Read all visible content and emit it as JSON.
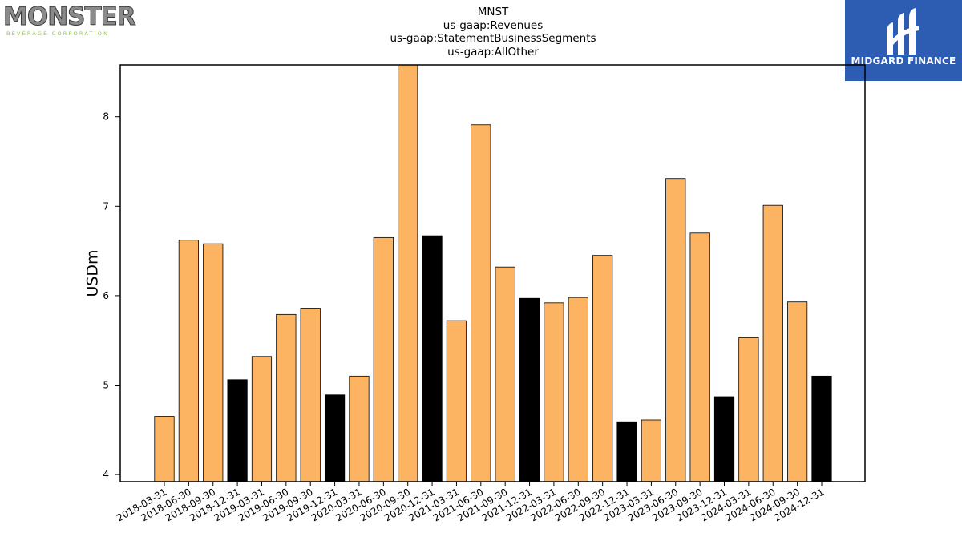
{
  "brand": {
    "name": "MONSTER",
    "tagline": "BEVERAGE CORPORATION"
  },
  "partner": {
    "name": "MIDGARD FINANCE"
  },
  "chart_data": {
    "type": "bar",
    "title_lines": [
      "MNST",
      "us-gaap:Revenues",
      "us-gaap:StatementBusinessSegments",
      "us-gaap:AllOther"
    ],
    "ylabel": "USDm",
    "xlabel": "",
    "ylim": [
      3.92,
      8.58
    ],
    "yticks": [
      4,
      5,
      6,
      7,
      8
    ],
    "grid": false,
    "categories": [
      "2018-03-31",
      "2018-06-30",
      "2018-09-30",
      "2018-12-31",
      "2019-03-31",
      "2019-06-30",
      "2019-09-30",
      "2019-12-31",
      "2020-03-31",
      "2020-06-30",
      "2020-09-30",
      "2020-12-31",
      "2021-03-31",
      "2021-06-30",
      "2021-09-30",
      "2021-12-31",
      "2022-03-31",
      "2022-06-30",
      "2022-09-30",
      "2022-12-31",
      "2023-03-31",
      "2023-06-30",
      "2023-09-30",
      "2023-12-31",
      "2024-03-31",
      "2024-06-30",
      "2024-09-30",
      "2024-12-31"
    ],
    "values": [
      4.65,
      6.62,
      6.58,
      5.06,
      5.32,
      5.79,
      5.86,
      4.89,
      5.1,
      6.65,
      8.6,
      6.67,
      5.72,
      7.91,
      6.32,
      5.97,
      5.92,
      5.98,
      6.45,
      4.59,
      4.61,
      7.31,
      6.7,
      4.87,
      5.53,
      7.01,
      5.93,
      5.1
    ],
    "quarter_colors": {
      "q1_q3": "#fdb462",
      "q4": "#000000"
    }
  }
}
